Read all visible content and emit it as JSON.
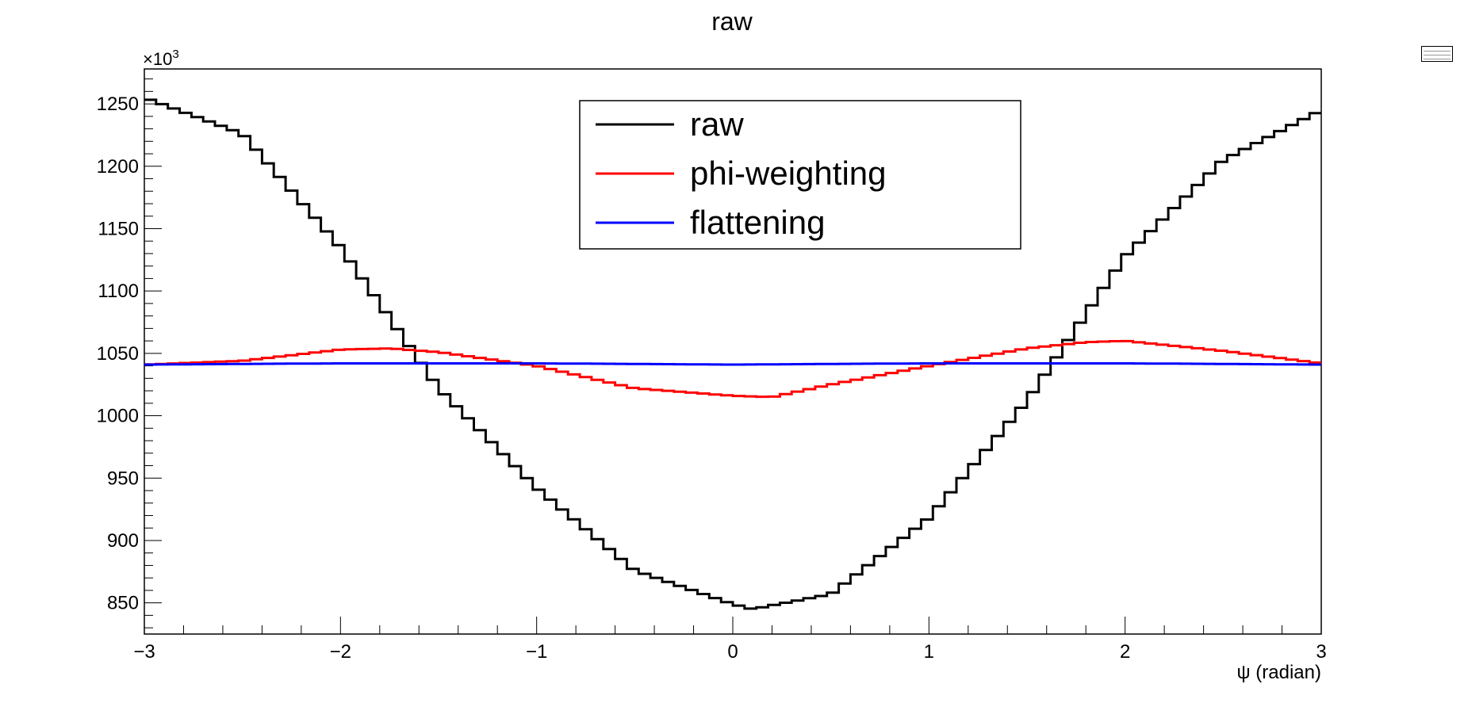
{
  "chart_data": {
    "type": "line",
    "title": "raw",
    "xlabel": "ψ (radian)",
    "ylabel": "",
    "y_exponent_label": "×10",
    "y_exponent_power": "3",
    "xlim": [
      -3,
      3
    ],
    "ylim": [
      825,
      1278
    ],
    "x_ticks": [
      -3,
      -2,
      -1,
      0,
      1,
      2,
      3
    ],
    "x_tick_labels": [
      "−3",
      "−2",
      "−1",
      "0",
      "1",
      "2",
      "3"
    ],
    "y_ticks": [
      850,
      900,
      950,
      1000,
      1050,
      1100,
      1150,
      1200,
      1250
    ],
    "y_tick_labels": [
      "850",
      "900",
      "950",
      "1000",
      "1050",
      "1100",
      "1150",
      "1200",
      "1250"
    ],
    "grid": false,
    "legend_position": "top-center",
    "series": [
      {
        "name": "raw",
        "color": "#000000",
        "step": true,
        "x": [
          -3.0,
          -2.5,
          -2.0,
          -1.5,
          -1.0,
          -0.5,
          0.0,
          0.1,
          0.5,
          1.0,
          1.5,
          2.0,
          2.5,
          3.0
        ],
        "values": [
          1255,
          1226,
          1135,
          1022,
          942,
          876,
          849,
          845,
          857,
          918,
          1012,
          1128,
          1205,
          1245
        ]
      },
      {
        "name": "phi-weighting",
        "color": "#ff0000",
        "step": true,
        "x": [
          -3.0,
          -2.5,
          -2.0,
          -1.75,
          -1.5,
          -1.0,
          -0.5,
          0.0,
          0.2,
          0.5,
          1.0,
          1.5,
          1.8,
          2.0,
          2.5,
          3.0
        ],
        "values": [
          1041,
          1044,
          1053,
          1054,
          1051,
          1040,
          1022,
          1016,
          1015,
          1025,
          1040,
          1054,
          1059,
          1060,
          1052,
          1042
        ]
      },
      {
        "name": "flattening",
        "color": "#0000ff",
        "step": true,
        "x": [
          -3.0,
          -2.0,
          -1.0,
          0.0,
          1.0,
          2.0,
          3.0
        ],
        "values": [
          1041,
          1042,
          1042,
          1041,
          1042,
          1042,
          1041
        ]
      }
    ]
  }
}
